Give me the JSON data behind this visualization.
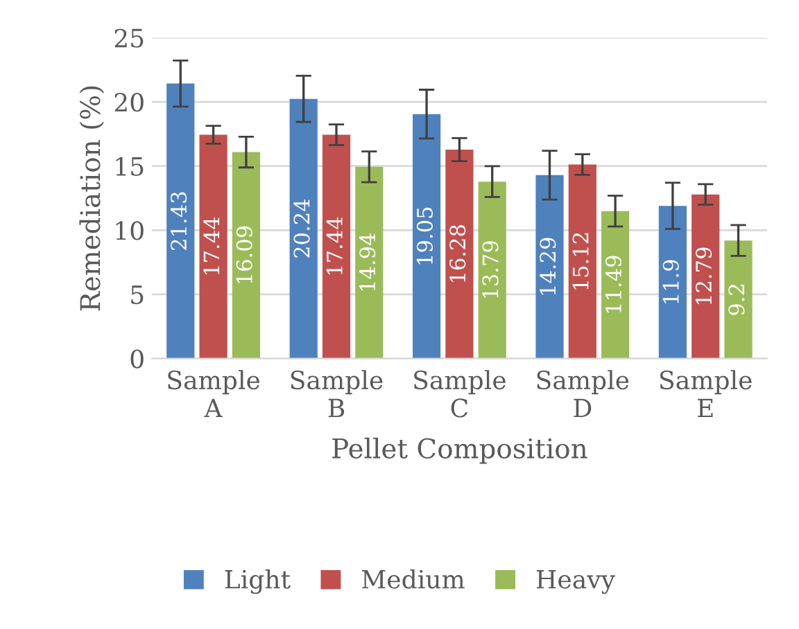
{
  "chart_data": {
    "type": "bar",
    "xlabel": "Pellet Composition",
    "ylabel": "Remediation (%)",
    "categories": [
      "Sample\nA",
      "Sample\nB",
      "Sample\nC",
      "Sample\nD",
      "Sample\nE"
    ],
    "series": [
      {
        "name": "Light",
        "color": "#4f81bd",
        "values": [
          21.43,
          20.24,
          19.05,
          14.29,
          11.9
        ],
        "errors": [
          1.8,
          1.8,
          1.9,
          1.9,
          1.8
        ]
      },
      {
        "name": "Medium",
        "color": "#c0504d",
        "values": [
          17.44,
          17.44,
          16.28,
          15.12,
          12.79
        ],
        "errors": [
          0.7,
          0.8,
          0.9,
          0.8,
          0.8
        ]
      },
      {
        "name": "Heavy",
        "color": "#9bbb59",
        "values": [
          16.09,
          14.94,
          13.79,
          11.49,
          9.2
        ],
        "errors": [
          1.2,
          1.2,
          1.2,
          1.2,
          1.2
        ]
      }
    ],
    "ylim": [
      0,
      25
    ],
    "yticks": [
      0,
      5,
      10,
      15,
      20,
      25
    ],
    "grid": "y",
    "legend": "bottom",
    "data_labels": true
  }
}
